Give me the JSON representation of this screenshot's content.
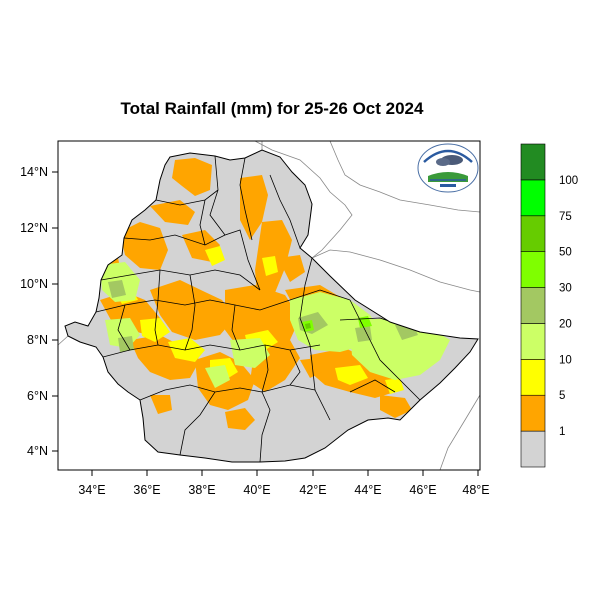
{
  "title": "Total Rainfall (mm) for 25-26 Oct 2024",
  "axes": {
    "lon_ticks": [
      "34°E",
      "36°E",
      "38°E",
      "40°E",
      "42°E",
      "44°E",
      "46°E",
      "48°E"
    ],
    "lat_ticks": [
      "14°N",
      "12°N",
      "10°N",
      "8°N",
      "6°N",
      "4°N"
    ]
  },
  "legend": {
    "classes": [
      {
        "label": "1",
        "color": "#d3d3d3"
      },
      {
        "label": "5",
        "color": "#ffa500"
      },
      {
        "label": "10",
        "color": "#ffff00"
      },
      {
        "label": "20",
        "color": "#ccff66"
      },
      {
        "label": "30",
        "color": "#a3c862"
      },
      {
        "label": "50",
        "color": "#7fff00"
      },
      {
        "label": "75",
        "color": "#66cc00"
      },
      {
        "label": "100",
        "color": "#00ff00"
      },
      {
        "label": "",
        "color": "#228b22"
      }
    ]
  },
  "colors": {
    "land": "#d3d3d3",
    "boundary": "#000000",
    "neighbor_border": "#888888"
  },
  "logo": {
    "name": "ethiopian-meteorology-institute-logo"
  }
}
